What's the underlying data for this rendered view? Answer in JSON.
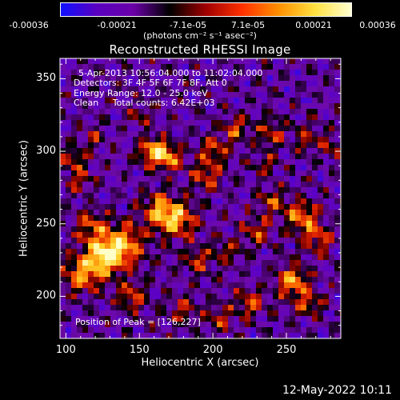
{
  "colorbar": {
    "tick_labels": [
      "-0.00036",
      "-0.00021",
      "-7.1e-05",
      "7.1e-05",
      "0.00021",
      "0.00036"
    ],
    "unit_label": "(photons cm⁻² s⁻¹ asec⁻²)",
    "range": [
      -0.00036,
      0.00036
    ],
    "colors": [
      "#1010ff",
      "#5a00c0",
      "#6a00a8",
      "#000000",
      "#a00000",
      "#ff3000",
      "#ff9000",
      "#ffe040",
      "#ffffd0"
    ]
  },
  "title": "Reconstructed RHESSI Image",
  "annotations": {
    "time_range": "5-Apr-2013 10:56:04.000 to 11:02:04.000",
    "detectors": "Detectors: 3F 4F 5F 6F 7F 8F, Att 0",
    "energy": "Energy Range: 12.0 - 25.0 keV",
    "clean": "Clean     Total counts: 6.42E+03",
    "peak": "Position of Peak = [126,227]"
  },
  "footer_date": "12-May-2022 10:11",
  "chart_data": {
    "type": "heatmap",
    "title": "Reconstructed RHESSI Image",
    "xlabel": "Heliocentric X (arcsec)",
    "ylabel": "Heliocentric Y (arcsec)",
    "xlim": [
      96,
      287
    ],
    "ylim": [
      171,
      364
    ],
    "xticks": [
      100,
      150,
      200,
      250
    ],
    "yticks": [
      200,
      250,
      300,
      350
    ],
    "peak": [
      126,
      227
    ],
    "colorbar_range": [
      -0.00036,
      0.00036
    ]
  }
}
